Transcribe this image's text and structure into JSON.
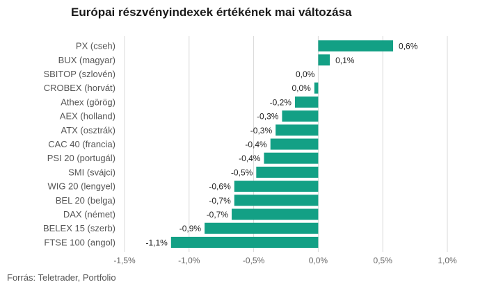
{
  "chart_data": {
    "type": "bar",
    "orientation": "horizontal",
    "title": "Európai részvényindexek értékének mai változása",
    "categories": [
      "PX (cseh)",
      "BUX (magyar)",
      "SBITOP (szlovén)",
      "CROBEX (horvát)",
      "Athex (görög)",
      "AEX (holland)",
      "ATX (osztrák)",
      "CAC 40 (francia)",
      "PSI 20 (portugál)",
      "SMI (svájci)",
      "WIG 20 (lengyel)",
      "BEL 20 (belga)",
      "DAX (német)",
      "BELEX 15 (szerb)",
      "FTSE 100 (angol)"
    ],
    "values": [
      0.58,
      0.09,
      0.0,
      -0.03,
      -0.18,
      -0.28,
      -0.33,
      -0.37,
      -0.42,
      -0.48,
      -0.65,
      -0.65,
      -0.67,
      -0.88,
      -1.14
    ],
    "value_labels": [
      "0,6%",
      "0,1%",
      "0,0%",
      "0,0%",
      "-0,2%",
      "-0,3%",
      "-0,3%",
      "-0,4%",
      "-0,4%",
      "-0,5%",
      "-0,6%",
      "-0,7%",
      "-0,7%",
      "-0,9%",
      "-1,1%"
    ],
    "x_ticks": [
      -1.5,
      -1.0,
      -0.5,
      0.0,
      0.5,
      1.0
    ],
    "x_tick_labels": [
      "-1,5%",
      "-1,0%",
      "-0,5%",
      "0,0%",
      "0,5%",
      "1,0%"
    ],
    "xlim": [
      -1.5,
      1.0
    ],
    "xlabel": "",
    "ylabel": "",
    "grid": "vertical",
    "bar_color": "#13a085"
  },
  "source": "Forrás: Teletrader, Portfolio"
}
